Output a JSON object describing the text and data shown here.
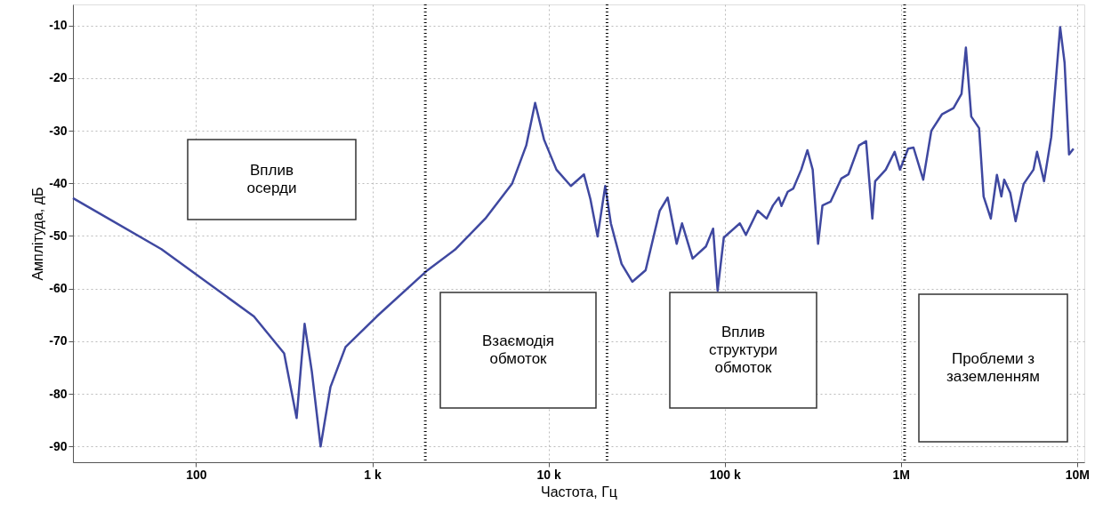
{
  "chart_data": {
    "type": "line",
    "xlabel": "Частота, Гц",
    "ylabel": "Амплітуда, дБ",
    "log": "x",
    "grid": true,
    "marker": "none",
    "line_style": "solid",
    "xlim": [
      20,
      11000000
    ],
    "ylim": [
      -93,
      -6
    ],
    "xticks": [
      100,
      {
        "value": 1000,
        "label": "1 k"
      },
      {
        "value": 10000,
        "label": "10 k"
      },
      {
        "value": 100000,
        "label": "100 k"
      },
      {
        "value": 1000000,
        "label": "1M"
      },
      {
        "value": 10000000,
        "label": "10M"
      }
    ],
    "yticks": [
      -10,
      -20,
      -30,
      -40,
      -50,
      -60,
      -70,
      -80,
      -90
    ],
    "x": [
      20,
      63.5,
      213,
      316,
      372,
      413,
      454,
      509,
      579,
      705,
      1060,
      2060,
      2950,
      4380,
      6210,
      7480,
      8400,
      9440,
      11100,
      13400,
      15900,
      17300,
      19000,
      20100,
      21000,
      22600,
      26000,
      29900,
      35600,
      42800,
      47500,
      53400,
      57300,
      65800,
      78300,
      86000,
      91200,
      98900,
      122000,
      132000,
      154000,
      173000,
      188000,
      203000,
      210000,
      228000,
      245000,
      272000,
      295000,
      316000,
      339000,
      359000,
      399000,
      459000,
      504000,
      579000,
      635000,
      689000,
      715000,
      821000,
      922000,
      989000,
      1100000,
      1180000,
      1340000,
      1490000,
      1710000,
      1990000,
      2210000,
      2340000,
      2510000,
      2780000,
      2950000,
      3240000,
      3510000,
      3720000,
      3860000,
      4180000,
      4480000,
      4980000,
      5660000,
      5930000,
      6500000,
      7140000,
      8020000,
      8500000,
      9010000,
      9550000
    ],
    "series": [
      {
        "color": "#3f48a0",
        "values": [
          -42.8,
          -52.5,
          -65.3,
          -72.3,
          -84.6,
          -66.7,
          -75.8,
          -90.0,
          -78.7,
          -71.1,
          -65.3,
          -56.5,
          -52.6,
          -46.7,
          -40.1,
          -32.8,
          -24.7,
          -31.7,
          -37.4,
          -40.5,
          -38.3,
          -43.0,
          -50.1,
          -44.7,
          -40.5,
          -47.6,
          -55.3,
          -58.7,
          -56.5,
          -45.2,
          -42.7,
          -51.5,
          -47.6,
          -54.3,
          -52.0,
          -48.6,
          -60.4,
          -50.3,
          -47.6,
          -49.8,
          -45.2,
          -46.7,
          -44.2,
          -42.7,
          -44.3,
          -41.6,
          -41.0,
          -37.4,
          -33.7,
          -37.4,
          -51.5,
          -44.2,
          -43.5,
          -39.1,
          -38.3,
          -32.8,
          -32.0,
          -46.7,
          -39.6,
          -37.4,
          -34.0,
          -37.4,
          -33.4,
          -33.2,
          -39.3,
          -30.0,
          -26.9,
          -25.7,
          -23.0,
          -14.2,
          -27.3,
          -29.5,
          -42.5,
          -46.7,
          -38.4,
          -42.5,
          -39.3,
          -41.8,
          -47.2,
          -40.1,
          -37.4,
          -34.0,
          -39.6,
          -31.2,
          -10.3,
          -17.1,
          -34.5,
          -33.4
        ]
      }
    ],
    "ref_lines": [
      {
        "axis": "x",
        "value": 2000,
        "color": "#000000",
        "line_style": "dotted"
      },
      {
        "axis": "x",
        "value": 21500,
        "color": "#000000",
        "line_style": "dotted"
      },
      {
        "axis": "x",
        "value": 1050000,
        "color": "#000000",
        "line_style": "dotted"
      }
    ],
    "annotations": [
      "Вплив\nосерди",
      "Взаємодія\nобмоток",
      "Вплив\nструктури\nобмоток",
      "Проблеми з\nзаземленням"
    ]
  }
}
